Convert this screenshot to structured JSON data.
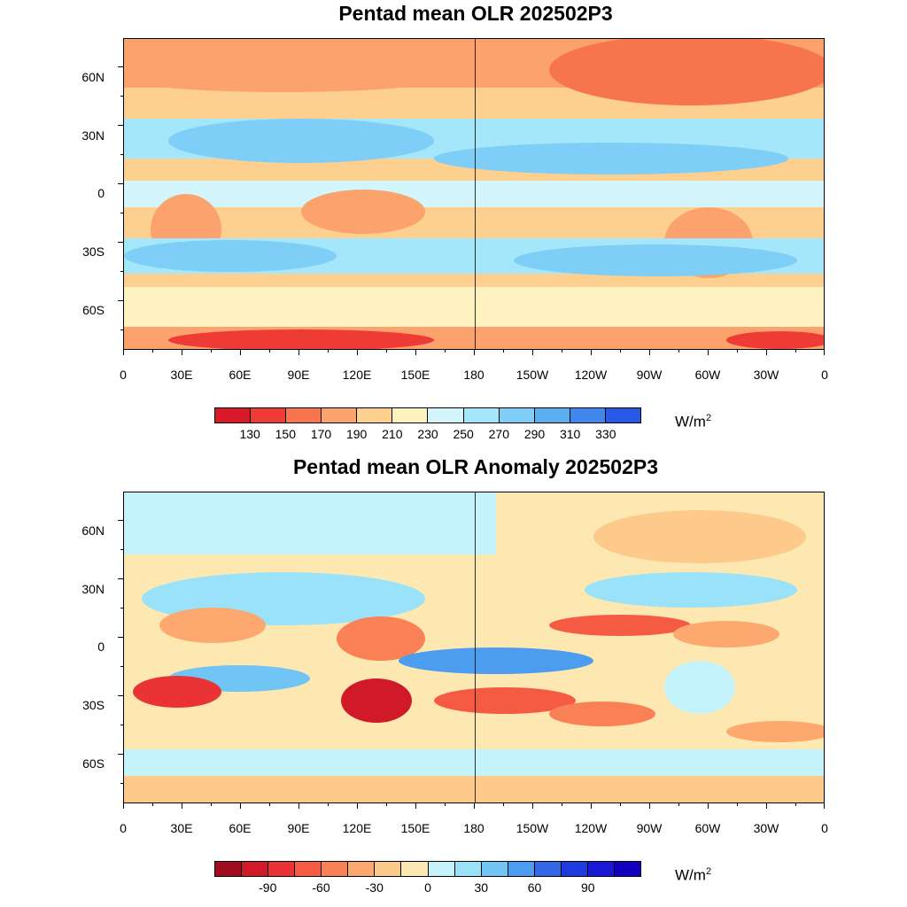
{
  "panels": [
    {
      "title": "Pentad mean OLR 202502P3",
      "units": "W/m",
      "units_sup": "2",
      "colorbar_colors": [
        "#d7192a",
        "#ef3b35",
        "#f7754d",
        "#fca26c",
        "#fdd08f",
        "#fef2c0",
        "#d2f6fb",
        "#a5e7fa",
        "#7fcef7",
        "#5aaef2",
        "#3f87ec",
        "#2858e6"
      ],
      "colorbar_labels": [
        "130",
        "150",
        "170",
        "190",
        "210",
        "230",
        "250",
        "270",
        "290",
        "310",
        "330"
      ]
    },
    {
      "title": "Pentad mean OLR Anomaly 202502P3",
      "units": "W/m",
      "units_sup": "2",
      "colorbar_colors": [
        "#a20b1f",
        "#d11a29",
        "#ea3335",
        "#f55a43",
        "#fa8055",
        "#fca86e",
        "#fdca8c",
        "#fee8b2",
        "#c4f3fb",
        "#9ae1fa",
        "#70c5f5",
        "#4c9cef",
        "#3267e7",
        "#1f3ae0",
        "#1818d6",
        "#1300c0"
      ],
      "colorbar_labels": [
        "-90",
        "-60",
        "-30",
        "0",
        "30",
        "60",
        "90"
      ]
    }
  ],
  "axes": {
    "y_labels": [
      "60N",
      "30N",
      "0",
      "30S",
      "60S"
    ],
    "x_labels": [
      "0",
      "30E",
      "60E",
      "90E",
      "120E",
      "150E",
      "180",
      "150W",
      "120W",
      "90W",
      "60W",
      "30W",
      "0"
    ]
  }
}
